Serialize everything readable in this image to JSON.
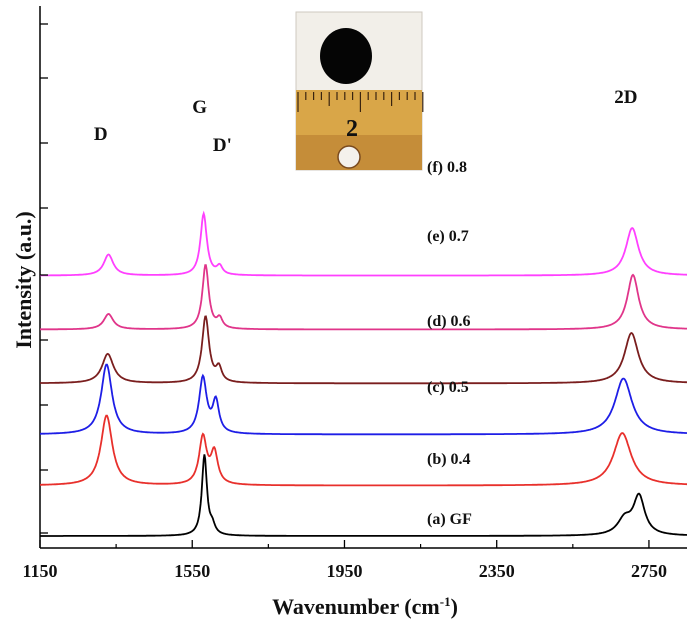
{
  "chart_data": {
    "type": "line",
    "xlabel_main": "Wavenumber (cm",
    "xlabel_sup": "-1",
    "xlabel_close": ")",
    "ylabel": "Intensity (a.u.)",
    "xlim": [
      1150,
      2850
    ],
    "xticks": [
      1150,
      1550,
      1950,
      2350,
      2750
    ],
    "xtick_labels": [
      "1150",
      "1550",
      "1950",
      "2350",
      "2750"
    ],
    "yticks_shown": false,
    "peak_labels": [
      {
        "text": "D",
        "x": 1320
      },
      {
        "text": "G",
        "x": 1580
      },
      {
        "text": "D'",
        "x": 1620
      },
      {
        "text": "2D",
        "x": 2700
      }
    ],
    "series": [
      {
        "name": "(a)  GF",
        "color": "#000000",
        "baseline": 0.0,
        "peaks": [
          {
            "x": 1582,
            "h": 1.15,
            "w": 8
          },
          {
            "x": 1603,
            "h": 0.12,
            "w": 8
          },
          {
            "x": 2686,
            "h": 0.22,
            "w": 22
          },
          {
            "x": 2724,
            "h": 0.55,
            "w": 18
          }
        ]
      },
      {
        "name": "(b)  0.4",
        "color": "#e8302c",
        "baseline": 0.72,
        "peaks": [
          {
            "x": 1325,
            "h": 1.0,
            "w": 18
          },
          {
            "x": 1578,
            "h": 0.68,
            "w": 12
          },
          {
            "x": 1608,
            "h": 0.45,
            "w": 11
          },
          {
            "x": 2680,
            "h": 0.75,
            "w": 28
          }
        ]
      },
      {
        "name": "(c)  0.5",
        "color": "#1e1ee6",
        "baseline": 1.45,
        "peaks": [
          {
            "x": 1325,
            "h": 1.0,
            "w": 17
          },
          {
            "x": 1578,
            "h": 0.8,
            "w": 12
          },
          {
            "x": 1612,
            "h": 0.45,
            "w": 10
          },
          {
            "x": 2683,
            "h": 0.8,
            "w": 27
          }
        ]
      },
      {
        "name": "(d)  0.6",
        "color": "#7a1e1e",
        "baseline": 2.18,
        "peaks": [
          {
            "x": 1328,
            "h": 0.42,
            "w": 18
          },
          {
            "x": 1585,
            "h": 0.95,
            "w": 11
          },
          {
            "x": 1620,
            "h": 0.2,
            "w": 9
          },
          {
            "x": 2704,
            "h": 0.72,
            "w": 22
          }
        ]
      },
      {
        "name": "(e)  0.7",
        "color": "#e0358a",
        "baseline": 2.95,
        "peaks": [
          {
            "x": 1330,
            "h": 0.22,
            "w": 15
          },
          {
            "x": 1585,
            "h": 0.92,
            "w": 10
          },
          {
            "x": 1622,
            "h": 0.14,
            "w": 9
          },
          {
            "x": 2708,
            "h": 0.78,
            "w": 18
          }
        ]
      },
      {
        "name": "(f)  0.8",
        "color": "#ff40ff",
        "baseline": 3.72,
        "peaks": [
          {
            "x": 1330,
            "h": 0.3,
            "w": 15
          },
          {
            "x": 1580,
            "h": 0.88,
            "w": 10
          },
          {
            "x": 1622,
            "h": 0.12,
            "w": 9
          },
          {
            "x": 2706,
            "h": 0.68,
            "w": 20
          }
        ]
      }
    ]
  },
  "inset": {
    "ruler_label": "2"
  }
}
